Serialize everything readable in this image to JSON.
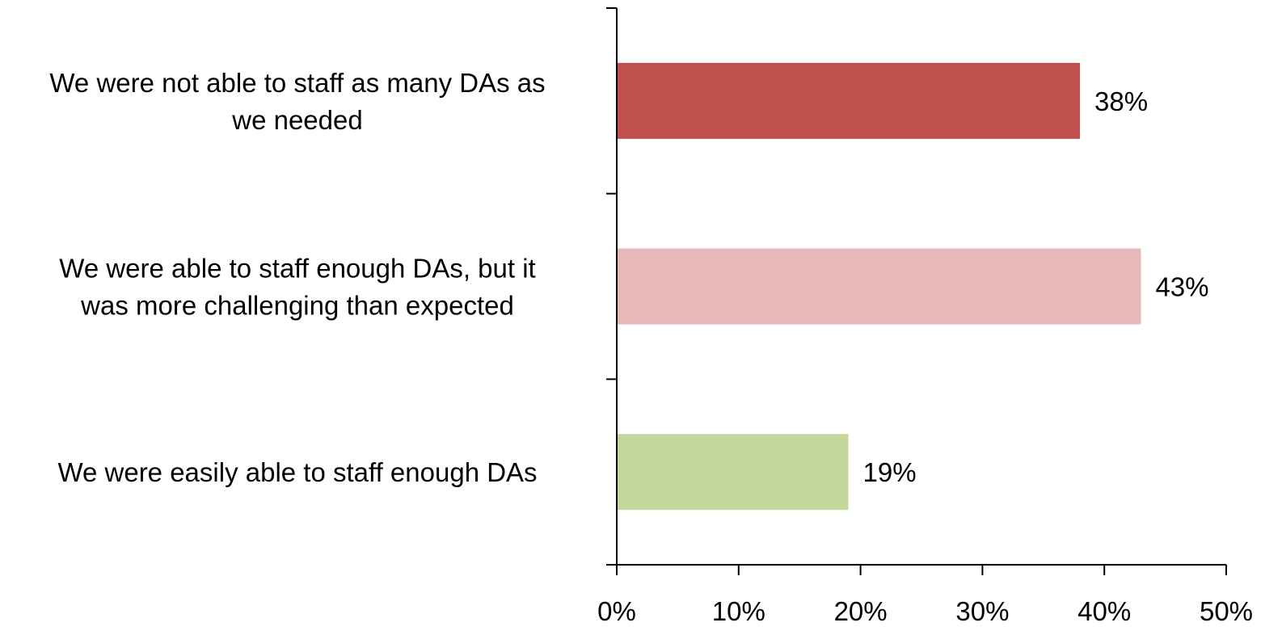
{
  "chart_data": {
    "type": "bar",
    "orientation": "horizontal",
    "title": "",
    "xlabel": "",
    "ylabel": "",
    "categories": [
      [
        "We were not able to staff as many DAs as",
        "we needed"
      ],
      [
        "We were able to staff enough DAs, but it",
        "was more challenging than expected"
      ],
      [
        "We were easily able to staff enough DAs"
      ]
    ],
    "values": [
      38,
      43,
      19
    ],
    "value_labels": [
      "38%",
      "43%",
      "19%"
    ],
    "colors": [
      "#C0504D",
      "#E6B8B7",
      "#C4D79B"
    ],
    "xlim": [
      0,
      50
    ],
    "xticks": [
      0,
      10,
      20,
      30,
      40,
      50
    ],
    "xtick_labels": [
      "0%",
      "10%",
      "20%",
      "30%",
      "40%",
      "50%"
    ],
    "grid": false,
    "legend": "none"
  }
}
